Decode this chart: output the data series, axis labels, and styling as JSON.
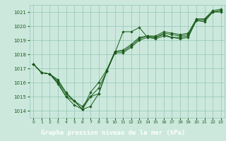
{
  "title": "Graphe pression niveau de la mer (hPa)",
  "bg_color": "#cce8dd",
  "label_bg_color": "#2d6b2d",
  "label_text_color": "#ffffff",
  "grid_color": "#99ccbb",
  "line_color": "#1a5c1a",
  "marker_color": "#1a5c1a",
  "xlim": [
    -0.5,
    23.5
  ],
  "ylim": [
    1013.5,
    1021.5
  ],
  "yticks": [
    1014,
    1015,
    1016,
    1017,
    1018,
    1019,
    1020,
    1021
  ],
  "xticks": [
    0,
    1,
    2,
    3,
    4,
    5,
    6,
    7,
    8,
    9,
    10,
    11,
    12,
    13,
    14,
    15,
    16,
    17,
    18,
    19,
    20,
    21,
    22,
    23
  ],
  "series": [
    [
      1017.3,
      1016.7,
      1016.6,
      1015.9,
      1015.0,
      1014.4,
      1014.1,
      1014.3,
      1015.2,
      1016.8,
      1018.1,
      1019.6,
      1019.6,
      1019.9,
      1019.2,
      1019.1,
      1019.3,
      1019.2,
      1019.1,
      1019.2,
      1020.4,
      1020.3,
      1021.0,
      1021.1
    ],
    [
      1017.3,
      1016.7,
      1016.6,
      1016.0,
      1015.0,
      1014.7,
      1014.3,
      1015.0,
      1015.2,
      1016.8,
      1018.1,
      1018.1,
      1018.5,
      1019.0,
      1019.2,
      1019.2,
      1019.4,
      1019.2,
      1019.2,
      1019.3,
      1020.4,
      1020.4,
      1021.0,
      1021.0
    ],
    [
      1017.3,
      1016.7,
      1016.6,
      1016.1,
      1015.2,
      1014.7,
      1014.1,
      1015.0,
      1015.6,
      1016.8,
      1018.2,
      1018.2,
      1018.6,
      1019.1,
      1019.3,
      1019.2,
      1019.5,
      1019.4,
      1019.3,
      1019.4,
      1020.5,
      1020.5,
      1021.0,
      1021.1
    ],
    [
      1017.3,
      1016.7,
      1016.6,
      1016.2,
      1015.3,
      1014.7,
      1014.1,
      1015.3,
      1016.0,
      1016.9,
      1018.2,
      1018.3,
      1018.7,
      1019.2,
      1019.3,
      1019.3,
      1019.6,
      1019.5,
      1019.4,
      1019.5,
      1020.5,
      1020.5,
      1021.1,
      1021.2
    ]
  ]
}
